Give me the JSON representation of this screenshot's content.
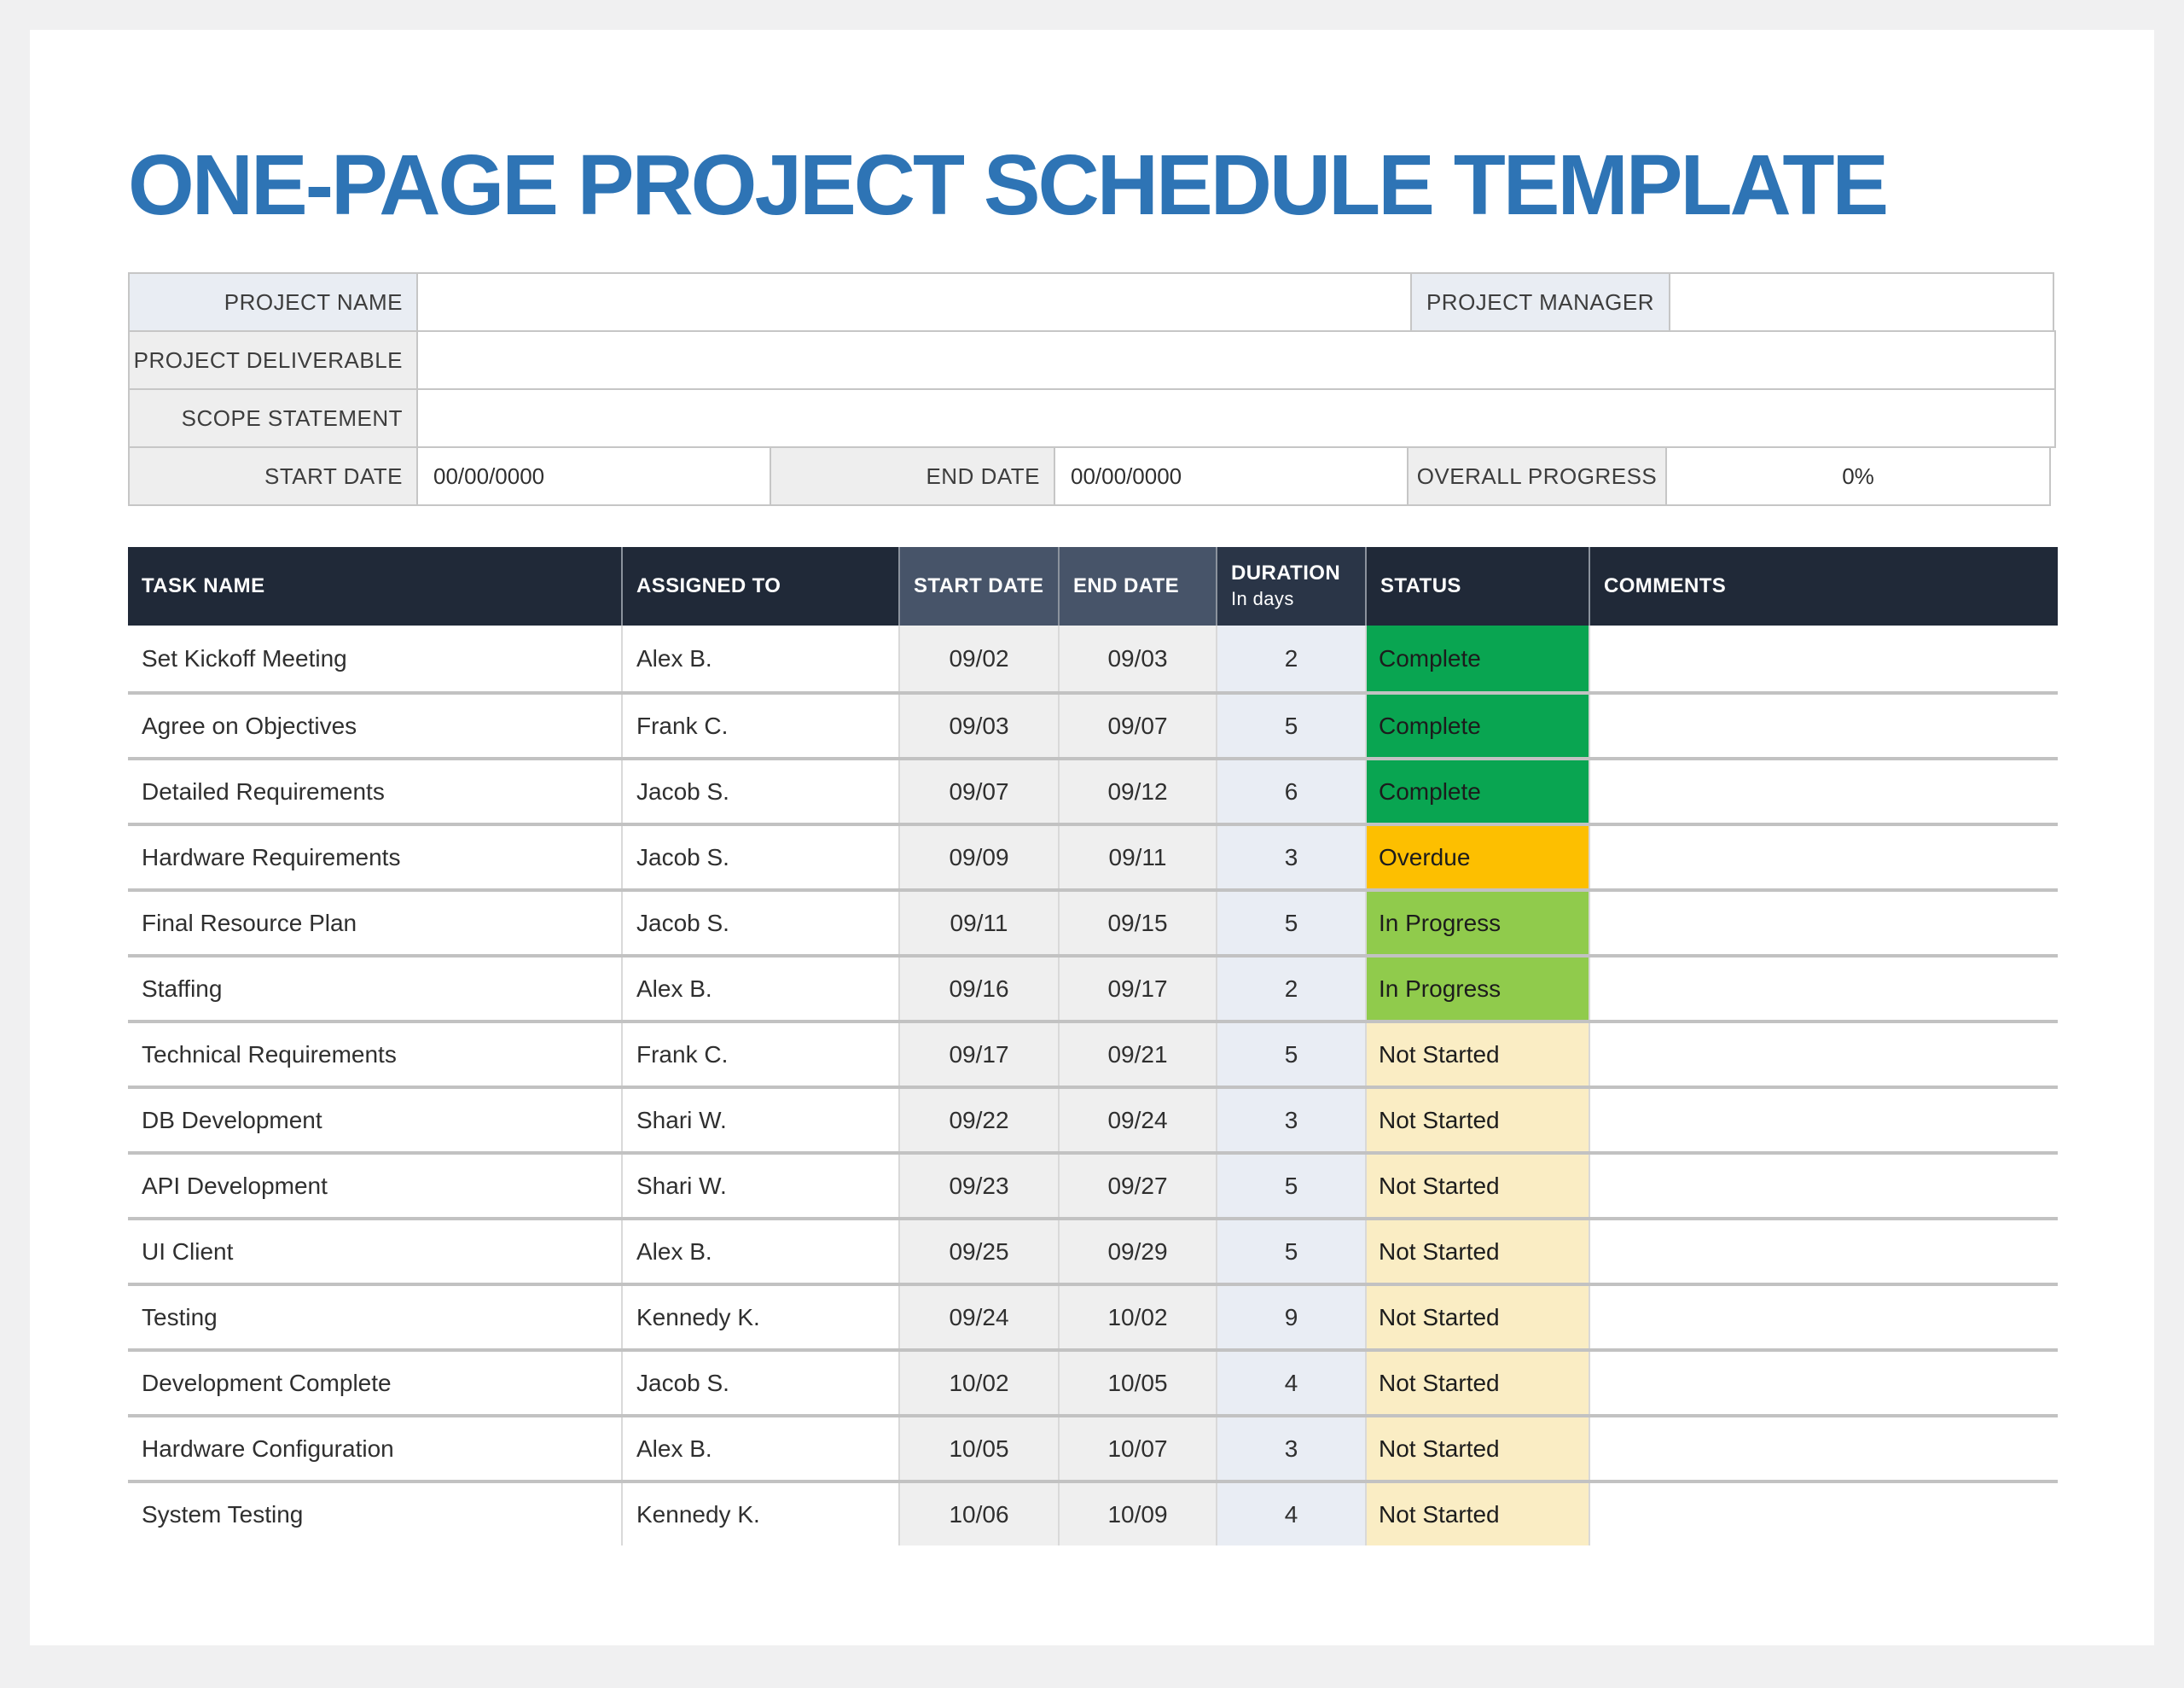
{
  "page": {
    "title": "ONE-PAGE PROJECT SCHEDULE TEMPLATE"
  },
  "info": {
    "project_name_label": "PROJECT NAME",
    "project_name_value": "",
    "project_manager_label": "PROJECT MANAGER",
    "project_manager_value": "",
    "project_deliverable_label": "PROJECT DELIVERABLE",
    "project_deliverable_value": "",
    "scope_statement_label": "SCOPE STATEMENT",
    "scope_statement_value": "",
    "start_date_label": "START DATE",
    "start_date_value": "00/00/0000",
    "end_date_label": "END DATE",
    "end_date_value": "00/00/0000",
    "overall_progress_label": "OVERALL PROGRESS",
    "overall_progress_value": "0%"
  },
  "table": {
    "headers": {
      "task_name": "TASK NAME",
      "assigned_to": "ASSIGNED TO",
      "start_date": "START DATE",
      "end_date": "END DATE",
      "duration_main": "DURATION",
      "duration_sub": "In days",
      "status": "STATUS",
      "comments": "COMMENTS"
    },
    "rows": [
      {
        "task": "Set Kickoff Meeting",
        "assigned": "Alex B.",
        "start": "09/02",
        "end": "09/03",
        "duration": "2",
        "status": "Complete",
        "comment": ""
      },
      {
        "task": "Agree on Objectives",
        "assigned": "Frank C.",
        "start": "09/03",
        "end": "09/07",
        "duration": "5",
        "status": "Complete",
        "comment": ""
      },
      {
        "task": "Detailed Requirements",
        "assigned": "Jacob S.",
        "start": "09/07",
        "end": "09/12",
        "duration": "6",
        "status": "Complete",
        "comment": ""
      },
      {
        "task": "Hardware Requirements",
        "assigned": "Jacob S.",
        "start": "09/09",
        "end": "09/11",
        "duration": "3",
        "status": "Overdue",
        "comment": ""
      },
      {
        "task": "Final Resource Plan",
        "assigned": "Jacob S.",
        "start": "09/11",
        "end": "09/15",
        "duration": "5",
        "status": "In Progress",
        "comment": ""
      },
      {
        "task": "Staffing",
        "assigned": "Alex B.",
        "start": "09/16",
        "end": "09/17",
        "duration": "2",
        "status": "In Progress",
        "comment": ""
      },
      {
        "task": "Technical Requirements",
        "assigned": "Frank C.",
        "start": "09/17",
        "end": "09/21",
        "duration": "5",
        "status": "Not Started",
        "comment": ""
      },
      {
        "task": "DB Development",
        "assigned": "Shari W.",
        "start": "09/22",
        "end": "09/24",
        "duration": "3",
        "status": "Not Started",
        "comment": ""
      },
      {
        "task": "API Development",
        "assigned": "Shari W.",
        "start": "09/23",
        "end": "09/27",
        "duration": "5",
        "status": "Not Started",
        "comment": ""
      },
      {
        "task": "UI Client",
        "assigned": "Alex B.",
        "start": "09/25",
        "end": "09/29",
        "duration": "5",
        "status": "Not Started",
        "comment": ""
      },
      {
        "task": "Testing",
        "assigned": "Kennedy K.",
        "start": "09/24",
        "end": "10/02",
        "duration": "9",
        "status": "Not Started",
        "comment": ""
      },
      {
        "task": "Development Complete",
        "assigned": "Jacob S.",
        "start": "10/02",
        "end": "10/05",
        "duration": "4",
        "status": "Not Started",
        "comment": ""
      },
      {
        "task": "Hardware Configuration",
        "assigned": "Alex B.",
        "start": "10/05",
        "end": "10/07",
        "duration": "3",
        "status": "Not Started",
        "comment": ""
      },
      {
        "task": "System Testing",
        "assigned": "Kennedy K.",
        "start": "10/06",
        "end": "10/09",
        "duration": "4",
        "status": "Not Started",
        "comment": ""
      }
    ]
  },
  "colors": {
    "title_blue": "#2E74B5",
    "header_dark": "#202938",
    "header_slate": "#475469",
    "header_mid": "#2a3547",
    "status": {
      "Complete": "#09A551",
      "Overdue": "#FDBF00",
      "In Progress": "#90CB4C",
      "Not Started": "#FAEDC4"
    }
  }
}
